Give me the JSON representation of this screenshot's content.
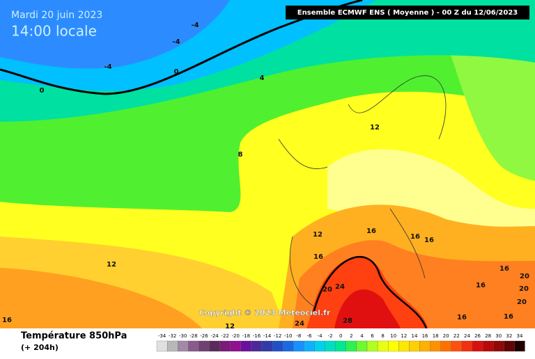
{
  "header": {
    "date": "Mardi 20 juin 2023",
    "time": "14:00 locale",
    "model": "Ensemble ECMWF ENS  ( Moyenne )  -  00 Z du 12/06/2023",
    "copyright": "Copyright © 2023 Meteociel.fr"
  },
  "contour_labels": [
    -4,
    -4,
    -4,
    0,
    0,
    4,
    8,
    12,
    12,
    12,
    12,
    16,
    16,
    16,
    16,
    16,
    16,
    16,
    16,
    16,
    20,
    20,
    20,
    20,
    24,
    24,
    28
  ],
  "footer": {
    "title": "Température 850hPa",
    "lead": "(+ 204h)"
  },
  "legend": {
    "labels": [
      -34,
      -32,
      -30,
      -28,
      -26,
      -24,
      -22,
      -20,
      -18,
      -16,
      -14,
      -12,
      -10,
      -8,
      -6,
      -4,
      -2,
      0,
      2,
      4,
      6,
      8,
      10,
      12,
      14,
      16,
      18,
      20,
      22,
      24,
      26,
      28,
      30,
      32,
      34
    ],
    "colors": [
      "#e0e0e0",
      "#b8b8b8",
      "#a08aa8",
      "#8a5a8a",
      "#704070",
      "#5a2a5a",
      "#7a1a7a",
      "#901090",
      "#6a10a0",
      "#4a2a9a",
      "#303aa8",
      "#2050c8",
      "#1a6ae0",
      "#1890ff",
      "#10b0ff",
      "#00d0f0",
      "#00e0c0",
      "#00e890",
      "#30f050",
      "#70f830",
      "#b0ff20",
      "#e8ff10",
      "#ffff00",
      "#ffe800",
      "#ffd000",
      "#ffb000",
      "#ff9000",
      "#ff7000",
      "#ff5010",
      "#f03010",
      "#d81010",
      "#b80808",
      "#900808",
      "#600404",
      "#200000"
    ]
  }
}
